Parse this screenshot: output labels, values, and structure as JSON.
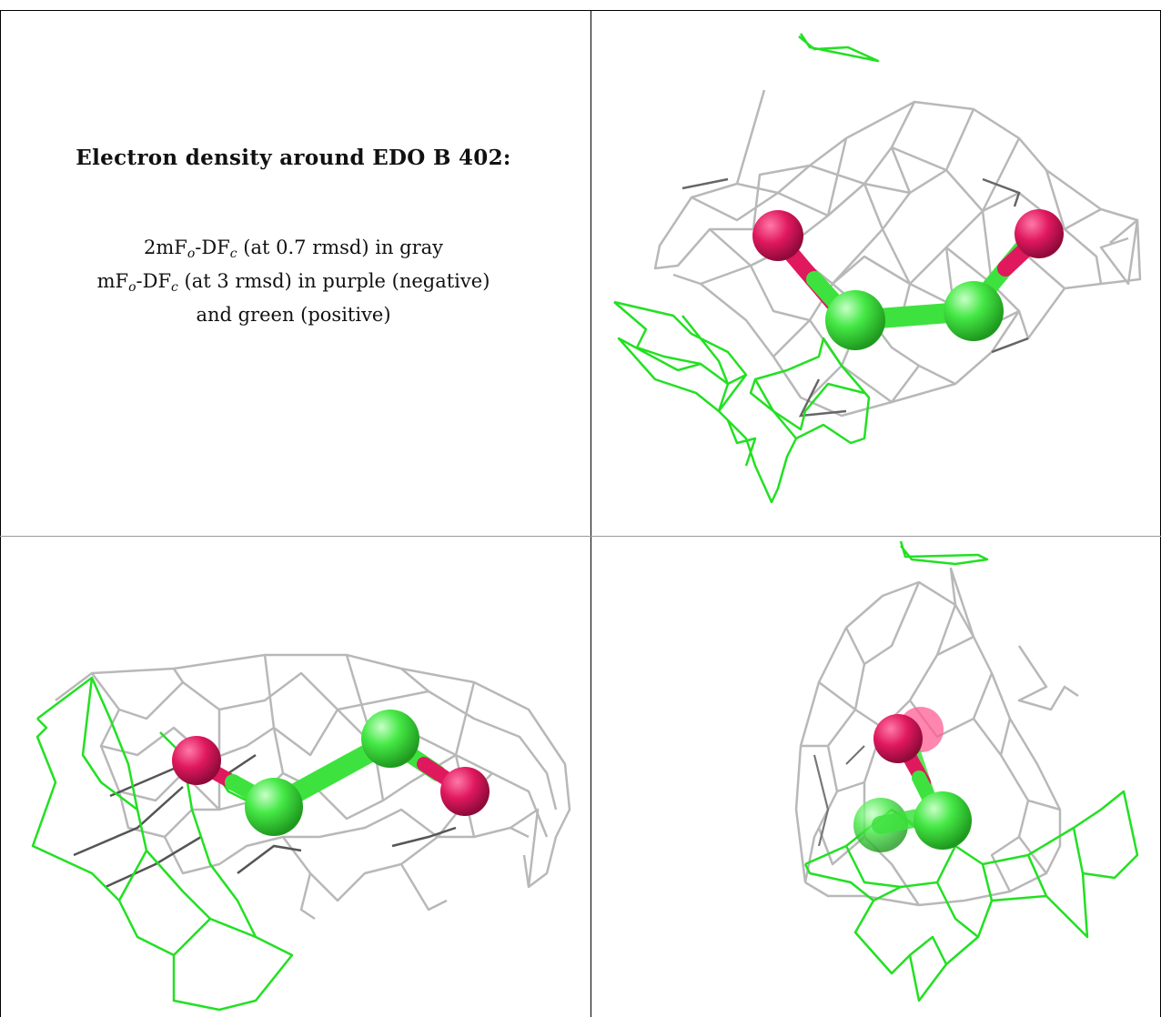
{
  "caption": {
    "title": "Electron density around EDO B 402:",
    "line1_a": "2mF",
    "line1_sub_o": "o",
    "line1_b": "-DF",
    "line1_sub_c": "c",
    "line1_c": " (at 0.7 rmsd) in gray",
    "line2_a": "mF",
    "line2_sub_o": "o",
    "line2_b": "-DF",
    "line2_sub_c": "c",
    "line2_c": " (at 3 rmsd) in purple (negative)",
    "line3": "and green (positive)"
  },
  "colors": {
    "mesh_gray": "#b4b4b4",
    "mesh_dark": "#6e6e6e",
    "mesh_green": "#1fe01f",
    "carbon": "#3ee23e",
    "oxygen": "#e0185e"
  },
  "views": [
    "view-top-right",
    "view-bottom-left",
    "view-bottom-right"
  ]
}
